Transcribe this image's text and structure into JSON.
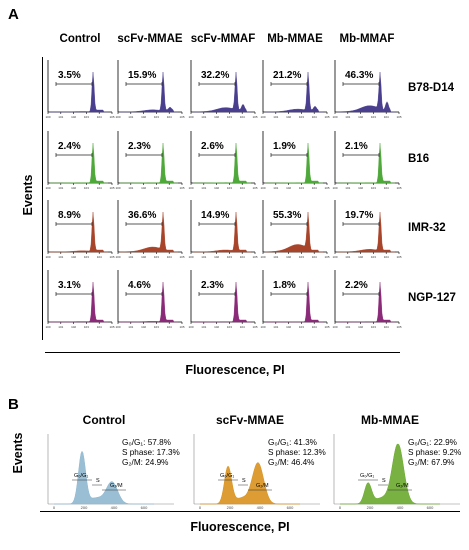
{
  "panel_a": {
    "label": "A",
    "columns": [
      "Control",
      "scFv-MMAE",
      "scFv-MMAF",
      "Mb-MMAE",
      "Mb-MMAF"
    ],
    "rows": [
      {
        "name": "B78-D14",
        "color": "#4a3f8f",
        "values": [
          "3.5%",
          "15.9%",
          "32.2%",
          "21.2%",
          "46.3%"
        ]
      },
      {
        "name": "B16",
        "color": "#4ea83a",
        "values": [
          "2.4%",
          "2.3%",
          "2.6%",
          "1.9%",
          "2.1%"
        ]
      },
      {
        "name": "IMR-32",
        "color": "#a8442a",
        "values": [
          "8.9%",
          "36.6%",
          "14.9%",
          "55.3%",
          "19.7%"
        ]
      },
      {
        "name": "NGP-127",
        "color": "#8a2a78",
        "values": [
          "3.1%",
          "4.6%",
          "2.3%",
          "1.8%",
          "2.2%"
        ]
      }
    ],
    "y_label": "Events",
    "x_label": "Fluorescence, PI"
  },
  "panel_b": {
    "label": "B",
    "y_label": "Events",
    "x_label": "Fluorescence, PI",
    "plots": [
      {
        "title": "Control",
        "color": "#8fb8cf",
        "g0g1": "G₀/G₁: 57.8%",
        "s": "S phase: 17.3%",
        "g2m": "G₂/M: 24.9%",
        "gates": [
          "G₀/G₁",
          "S",
          "G₂/M"
        ],
        "ticks": [
          "0",
          "200",
          "400",
          "600"
        ]
      },
      {
        "title": "scFv-MMAE",
        "color": "#d9921e",
        "g0g1": "G₀/G₁: 41.3%",
        "s": "S phase: 12.3%",
        "g2m": "G₂/M: 46.4%",
        "gates": [
          "G₀/G₁",
          "S",
          "G₂/M"
        ],
        "ticks": [
          "0",
          "200",
          "400",
          "600"
        ]
      },
      {
        "title": "Mb-MMAE",
        "color": "#6aaa2e",
        "g0g1": "G₀/G₁: 22.9%",
        "s": "S phase: 9.2%",
        "g2m": "G₂/M: 67.9%",
        "gates": [
          "G₀/G₁",
          "S",
          "G₂/M"
        ],
        "ticks": [
          "0",
          "200",
          "400",
          "600"
        ]
      }
    ]
  }
}
